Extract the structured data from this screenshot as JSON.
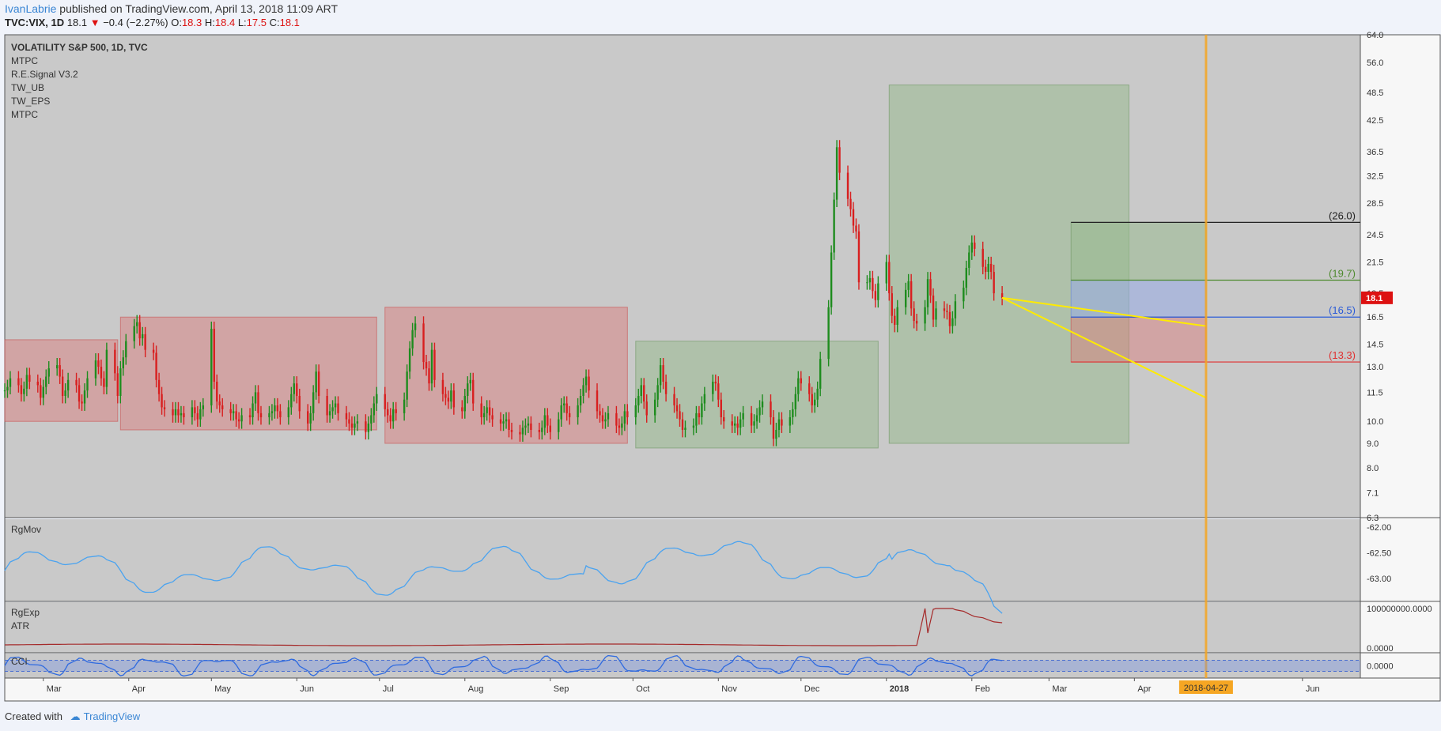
{
  "header": {
    "author": "IvanLabrie",
    "published": " published on TradingView.com, April 13, 2018 11:09 ART",
    "symbol": "TVC:VIX, 1D",
    "last": "18.1",
    "change": "−0.4 (−2.27%)",
    "o_label": "O:",
    "o_val": "18.3",
    "h_label": "H:",
    "h_val": "18.4",
    "l_label": "L:",
    "l_val": "17.5",
    "c_label": "C:",
    "c_val": "18.1"
  },
  "legend": [
    "VOLATILITY S&P 500, 1D, TVC",
    "MTPC",
    "R.E.Signal V3.2",
    "TW_UB",
    "TW_EPS",
    "MTPC"
  ],
  "price_badge": "18.1",
  "time_badge": "2018-04-27",
  "footer": {
    "created": "Created with",
    "brand": "TradingView"
  },
  "colors": {
    "bull": "#1e8c1e",
    "bear": "#d81f1f",
    "indicator": "#4aa3f0",
    "atr": "#a52a2a",
    "target_line": "#f5a623",
    "projection": "#ffeb00"
  },
  "chart_data": {
    "type": "candlestick",
    "main": {
      "ylim": [
        6.3,
        64.0
      ],
      "scale": "log",
      "y_ticks": [
        "64.0",
        "56.0",
        "48.5",
        "42.5",
        "36.5",
        "32.5",
        "28.5",
        "24.5",
        "21.5",
        "18.5",
        "16.5",
        "14.5",
        "13.0",
        "11.5",
        "10.0",
        "9.0",
        "8.0",
        "7.1",
        "6.3"
      ],
      "levels": [
        {
          "label": "(26.0)",
          "value": 26.0,
          "color": "#222222"
        },
        {
          "label": "(19.7)",
          "value": 19.7,
          "color": "#4e8a2e"
        },
        {
          "label": "(16.5)",
          "value": 16.5,
          "color": "#2a5bd7"
        },
        {
          "label": "(13.3)",
          "value": 13.3,
          "color": "#e03030"
        }
      ],
      "range_boxes": [
        {
          "from": "2017-02-15",
          "to": "2017-03-28",
          "low": 10.0,
          "high": 14.8,
          "color": "red"
        },
        {
          "from": "2017-03-29",
          "to": "2017-06-30",
          "low": 9.6,
          "high": 16.5,
          "color": "red"
        },
        {
          "from": "2017-07-03",
          "to": "2017-09-29",
          "low": 9.0,
          "high": 17.3,
          "color": "red"
        },
        {
          "from": "2017-10-02",
          "to": "2017-12-29",
          "low": 8.8,
          "high": 14.7,
          "color": "green"
        },
        {
          "from": "2018-01-02",
          "to": "2018-03-30",
          "low": 9.0,
          "high": 50.3,
          "color": "green"
        },
        {
          "from": "2018-03-09",
          "to": "2018-04-27",
          "low": 19.7,
          "high": 26.0,
          "color": "green"
        },
        {
          "from": "2018-03-09",
          "to": "2018-04-27",
          "low": 16.5,
          "high": 19.7,
          "color": "blue"
        },
        {
          "from": "2018-03-09",
          "to": "2018-04-27",
          "low": 13.3,
          "high": 16.5,
          "color": "red"
        }
      ],
      "target_date": "2018-04-27"
    },
    "close": [
      11.6,
      11.8,
      12.3,
      11.9,
      11.4,
      11.7,
      12.5,
      12.1,
      11.9,
      11.2,
      11.8,
      12.4,
      12.9,
      13.1,
      12.4,
      11.3,
      11.6,
      12.2,
      11.9,
      11.0,
      10.9,
      11.6,
      12.3,
      13.4,
      13.0,
      12.3,
      11.8,
      14.1,
      12.6,
      11.3,
      12.9,
      13.6,
      14.7,
      15.8,
      16.1,
      14.9,
      15.2,
      14.1,
      13.9,
      12.2,
      11.4,
      10.7,
      10.6,
      10.3,
      10.6,
      10.3,
      10.4,
      10.2,
      10.7,
      10.4,
      10.1,
      10.6,
      10.8,
      15.6,
      12.1,
      11.0,
      10.8,
      10.6,
      10.4,
      10.5,
      10.1,
      10.0,
      10.3,
      10.2,
      10.9,
      11.5,
      10.4,
      10.2,
      10.4,
      10.5,
      10.8,
      10.5,
      10.2,
      10.7,
      11.4,
      12.0,
      11.3,
      10.5,
      9.9,
      10.4,
      11.5,
      12.7,
      11.3,
      10.3,
      10.5,
      10.7,
      10.9,
      10.4,
      10.1,
      9.9,
      9.7,
      9.9,
      10.0,
      9.5,
      9.9,
      10.3,
      10.9,
      11.4,
      10.6,
      10.3,
      10.0,
      10.6,
      10.4,
      11.1,
      12.7,
      14.2,
      15.5,
      16.0,
      13.3,
      12.9,
      12.0,
      14.1,
      12.2,
      11.4,
      11.2,
      11.0,
      11.6,
      10.7,
      10.5,
      11.3,
      12.0,
      12.2,
      10.9,
      10.2,
      10.4,
      10.7,
      10.3,
      10.1,
      9.9,
      10.0,
      10.1,
      9.6,
      9.5,
      9.4,
      9.7,
      9.8,
      9.9,
      9.6,
      9.5,
      9.7,
      10.3,
      9.8,
      9.5,
      10.1,
      10.8,
      10.9,
      10.4,
      10.2,
      10.8,
      11.3,
      11.9,
      12.4,
      11.6,
      10.5,
      10.3,
      10.0,
      10.1,
      10.4,
      9.8,
      9.7,
      9.9,
      10.5,
      10.2,
      10.8,
      11.3,
      11.9,
      11.0,
      10.3,
      11.1,
      11.9,
      13.1,
      12.1,
      11.4,
      10.8,
      10.5,
      10.1,
      9.6,
      9.7,
      9.8,
      10.4,
      10.2,
      10.9,
      11.4,
      12.1,
      12.0,
      11.1,
      10.2,
      10.0,
      9.8,
      9.9,
      9.7,
      10.1,
      10.4,
      9.8,
      10.0,
      10.3,
      10.7,
      11.0,
      10.2,
      9.2,
      9.6,
      10.1,
      9.8,
      10.2,
      10.6,
      11.4,
      12.3,
      12.0,
      11.4,
      10.8,
      11.1,
      11.7,
      13.5,
      17.3,
      22.5,
      29.0,
      37.3,
      33.0,
      29.1,
      27.7,
      25.6,
      24.9,
      19.5,
      19.5,
      19.9,
      18.7,
      17.9,
      19.4,
      21.5,
      18.5,
      16.6,
      15.9,
      17.3,
      18.8,
      19.6,
      17.2,
      16.2,
      16.0,
      17.3,
      19.8,
      18.3,
      16.3,
      17.2,
      17.0,
      16.9,
      15.8,
      16.4,
      17.8,
      19.0,
      20.9,
      22.5,
      23.6,
      22.9,
      21.0,
      20.5,
      21.3,
      20.5,
      18.5,
      18.1
    ],
    "rgmov": {
      "ticks": [
        "-62.00",
        "-62.50",
        "-63.00"
      ],
      "ylim": [
        -63.45,
        -61.85
      ]
    },
    "rgexp_atr": {
      "labels": [
        "RgExp",
        "ATR"
      ],
      "ticks": [
        "100000000.0000",
        "0.0000"
      ]
    },
    "cci": {
      "label": "CCI",
      "ticks": [
        "0.0000"
      ]
    },
    "x_ticks": [
      "Mar",
      "Apr",
      "May",
      "Jun",
      "Jul",
      "Aug",
      "Sep",
      "Oct",
      "Nov",
      "Dec",
      "2018",
      "Feb",
      "Mar",
      "Apr",
      "Jun"
    ],
    "x_tick_dates": [
      "2017-03-01",
      "2017-04-01",
      "2017-05-01",
      "2017-06-01",
      "2017-07-01",
      "2017-08-01",
      "2017-09-01",
      "2017-10-01",
      "2017-11-01",
      "2017-12-01",
      "2018-01-01",
      "2018-02-01",
      "2018-03-01",
      "2018-04-01",
      "2018-06-01"
    ],
    "start_date": "2017-02-15",
    "end_date": "2018-06-22"
  }
}
